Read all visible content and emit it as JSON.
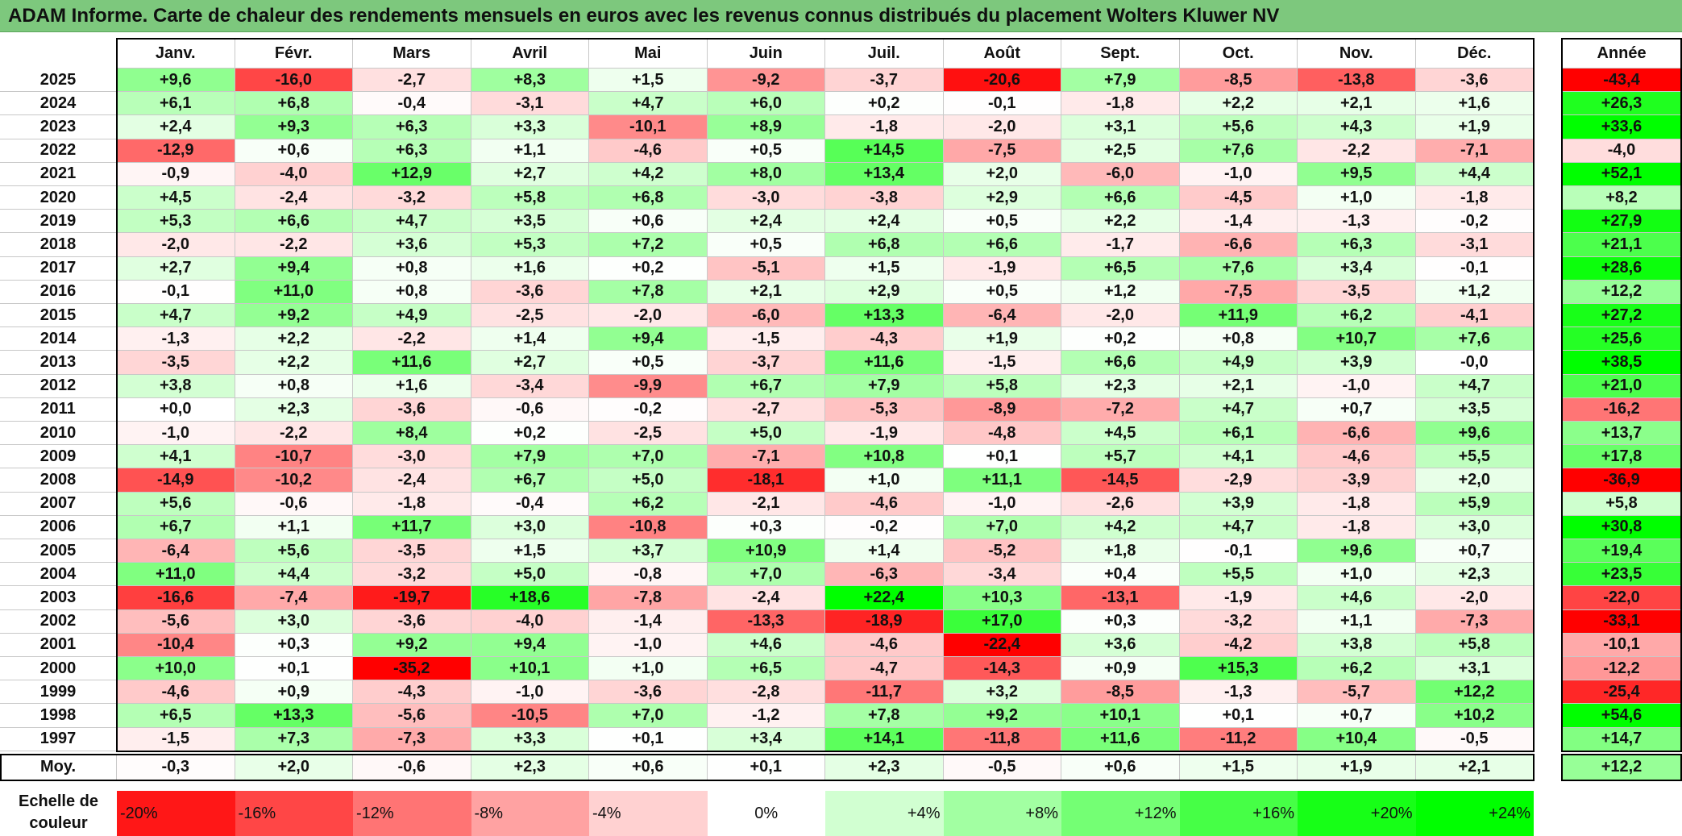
{
  "title": "ADAM Informe. Carte de chaleur des rendements mensuels en euros avec les revenus connus distribués du placement Wolters Kluwer NV",
  "chart_data": {
    "type": "heatmap",
    "title": "ADAM Informe. Carte de chaleur des rendements mensuels en euros avec les revenus connus distribués du placement Wolters Kluwer NV",
    "months": [
      "Janv.",
      "Févr.",
      "Mars",
      "Avril",
      "Mai",
      "Juin",
      "Juil.",
      "Août",
      "Sept.",
      "Oct.",
      "Nov.",
      "Déc."
    ],
    "year_header": "Année",
    "rows": [
      {
        "year": "2025",
        "values": [
          "+9,6",
          "-16,0",
          "-2,7",
          "+8,3",
          "+1,5",
          "-9,2",
          "-3,7",
          "-20,6",
          "+7,9",
          "-8,5",
          "-13,8",
          "-3,6"
        ],
        "total": "-43,4"
      },
      {
        "year": "2024",
        "values": [
          "+6,1",
          "+6,8",
          "-0,4",
          "-3,1",
          "+4,7",
          "+6,0",
          "+0,2",
          "-0,1",
          "-1,8",
          "+2,2",
          "+2,1",
          "+1,6"
        ],
        "total": "+26,3"
      },
      {
        "year": "2023",
        "values": [
          "+2,4",
          "+9,3",
          "+6,3",
          "+3,3",
          "-10,1",
          "+8,9",
          "-1,8",
          "-2,0",
          "+3,1",
          "+5,6",
          "+4,3",
          "+1,9"
        ],
        "total": "+33,6"
      },
      {
        "year": "2022",
        "values": [
          "-12,9",
          "+0,6",
          "+6,3",
          "+1,1",
          "-4,6",
          "+0,5",
          "+14,5",
          "-7,5",
          "+2,5",
          "+7,6",
          "-2,2",
          "-7,1"
        ],
        "total": "-4,0"
      },
      {
        "year": "2021",
        "values": [
          "-0,9",
          "-4,0",
          "+12,9",
          "+2,7",
          "+4,2",
          "+8,0",
          "+13,4",
          "+2,0",
          "-6,0",
          "-1,0",
          "+9,5",
          "+4,4"
        ],
        "total": "+52,1"
      },
      {
        "year": "2020",
        "values": [
          "+4,5",
          "-2,4",
          "-3,2",
          "+5,8",
          "+6,8",
          "-3,0",
          "-3,8",
          "+2,9",
          "+6,6",
          "-4,5",
          "+1,0",
          "-1,8"
        ],
        "total": "+8,2"
      },
      {
        "year": "2019",
        "values": [
          "+5,3",
          "+6,6",
          "+4,7",
          "+3,5",
          "+0,6",
          "+2,4",
          "+2,4",
          "+0,5",
          "+2,2",
          "-1,4",
          "-1,3",
          "-0,2"
        ],
        "total": "+27,9"
      },
      {
        "year": "2018",
        "values": [
          "-2,0",
          "-2,2",
          "+3,6",
          "+5,3",
          "+7,2",
          "+0,5",
          "+6,8",
          "+6,6",
          "-1,7",
          "-6,6",
          "+6,3",
          "-3,1"
        ],
        "total": "+21,1"
      },
      {
        "year": "2017",
        "values": [
          "+2,7",
          "+9,4",
          "+0,8",
          "+1,6",
          "+0,2",
          "-5,1",
          "+1,5",
          "-1,9",
          "+6,5",
          "+7,6",
          "+3,4",
          "-0,1"
        ],
        "total": "+28,6"
      },
      {
        "year": "2016",
        "values": [
          "-0,1",
          "+11,0",
          "+0,8",
          "-3,6",
          "+7,8",
          "+2,1",
          "+2,9",
          "+0,5",
          "+1,2",
          "-7,5",
          "-3,5",
          "+1,2"
        ],
        "total": "+12,2"
      },
      {
        "year": "2015",
        "values": [
          "+4,7",
          "+9,2",
          "+4,9",
          "-2,5",
          "-2,0",
          "-6,0",
          "+13,3",
          "-6,4",
          "-2,0",
          "+11,9",
          "+6,2",
          "-4,1"
        ],
        "total": "+27,2"
      },
      {
        "year": "2014",
        "values": [
          "-1,3",
          "+2,2",
          "-2,2",
          "+1,4",
          "+9,4",
          "-1,5",
          "-4,3",
          "+1,9",
          "+0,2",
          "+0,8",
          "+10,7",
          "+7,6"
        ],
        "total": "+25,6"
      },
      {
        "year": "2013",
        "values": [
          "-3,5",
          "+2,2",
          "+11,6",
          "+2,7",
          "+0,5",
          "-3,7",
          "+11,6",
          "-1,5",
          "+6,6",
          "+4,9",
          "+3,9",
          "-0,0"
        ],
        "total": "+38,5"
      },
      {
        "year": "2012",
        "values": [
          "+3,8",
          "+0,8",
          "+1,6",
          "-3,4",
          "-9,9",
          "+6,7",
          "+7,9",
          "+5,8",
          "+2,3",
          "+2,1",
          "-1,0",
          "+4,7"
        ],
        "total": "+21,0"
      },
      {
        "year": "2011",
        "values": [
          "+0,0",
          "+2,3",
          "-3,6",
          "-0,6",
          "-0,2",
          "-2,7",
          "-5,3",
          "-8,9",
          "-7,2",
          "+4,7",
          "+0,7",
          "+3,5"
        ],
        "total": "-16,2"
      },
      {
        "year": "2010",
        "values": [
          "-1,0",
          "-2,2",
          "+8,4",
          "+0,2",
          "-2,5",
          "+5,0",
          "-1,9",
          "-4,8",
          "+4,5",
          "+6,1",
          "-6,6",
          "+9,6"
        ],
        "total": "+13,7"
      },
      {
        "year": "2009",
        "values": [
          "+4,1",
          "-10,7",
          "-3,0",
          "+7,9",
          "+7,0",
          "-7,1",
          "+10,8",
          "+0,1",
          "+5,7",
          "+4,1",
          "-4,6",
          "+5,5"
        ],
        "total": "+17,8"
      },
      {
        "year": "2008",
        "values": [
          "-14,9",
          "-10,2",
          "-2,4",
          "+6,7",
          "+5,0",
          "-18,1",
          "+1,0",
          "+11,1",
          "-14,5",
          "-2,9",
          "-3,9",
          "+2,0"
        ],
        "total": "-36,9"
      },
      {
        "year": "2007",
        "values": [
          "+5,6",
          "-0,6",
          "-1,8",
          "-0,4",
          "+6,2",
          "-2,1",
          "-4,6",
          "-1,0",
          "-2,6",
          "+3,9",
          "-1,8",
          "+5,9"
        ],
        "total": "+5,8"
      },
      {
        "year": "2006",
        "values": [
          "+6,7",
          "+1,1",
          "+11,7",
          "+3,0",
          "-10,8",
          "+0,3",
          "-0,2",
          "+7,0",
          "+4,2",
          "+4,7",
          "-1,8",
          "+3,0"
        ],
        "total": "+30,8"
      },
      {
        "year": "2005",
        "values": [
          "-6,4",
          "+5,6",
          "-3,5",
          "+1,5",
          "+3,7",
          "+10,9",
          "+1,4",
          "-5,2",
          "+1,8",
          "-0,1",
          "+9,6",
          "+0,7"
        ],
        "total": "+19,4"
      },
      {
        "year": "2004",
        "values": [
          "+11,0",
          "+4,4",
          "-3,2",
          "+5,0",
          "-0,8",
          "+7,0",
          "-6,3",
          "-3,4",
          "+0,4",
          "+5,5",
          "+1,0",
          "+2,3"
        ],
        "total": "+23,5"
      },
      {
        "year": "2003",
        "values": [
          "-16,6",
          "-7,4",
          "-19,7",
          "+18,6",
          "-7,8",
          "-2,4",
          "+22,4",
          "+10,3",
          "-13,1",
          "-1,9",
          "+4,6",
          "-2,0"
        ],
        "total": "-22,0"
      },
      {
        "year": "2002",
        "values": [
          "-5,6",
          "+3,0",
          "-3,6",
          "-4,0",
          "-1,4",
          "-13,3",
          "-18,9",
          "+17,0",
          "+0,3",
          "-3,2",
          "+1,1",
          "-7,3"
        ],
        "total": "-33,1"
      },
      {
        "year": "2001",
        "values": [
          "-10,4",
          "+0,3",
          "+9,2",
          "+9,4",
          "-1,0",
          "+4,6",
          "-4,6",
          "-22,4",
          "+3,6",
          "-4,2",
          "+3,8",
          "+5,8"
        ],
        "total": "-10,1"
      },
      {
        "year": "2000",
        "values": [
          "+10,0",
          "+0,1",
          "-35,2",
          "+10,1",
          "+1,0",
          "+6,5",
          "-4,7",
          "-14,3",
          "+0,9",
          "+15,3",
          "+6,2",
          "+3,1"
        ],
        "total": "-12,2"
      },
      {
        "year": "1999",
        "values": [
          "-4,6",
          "+0,9",
          "-4,3",
          "-1,0",
          "-3,6",
          "-2,8",
          "-11,7",
          "+3,2",
          "-8,5",
          "-1,3",
          "-5,7",
          "+12,2"
        ],
        "total": "-25,4"
      },
      {
        "year": "1998",
        "values": [
          "+6,5",
          "+13,3",
          "-5,6",
          "-10,5",
          "+7,0",
          "-1,2",
          "+7,8",
          "+9,2",
          "+10,1",
          "+0,1",
          "+0,7",
          "+10,2"
        ],
        "total": "+54,6"
      },
      {
        "year": "1997",
        "values": [
          "-1,5",
          "+7,3",
          "-7,3",
          "+3,3",
          "+0,1",
          "+3,4",
          "+14,1",
          "-11,8",
          "+11,6",
          "-11,2",
          "+10,4",
          "-0,5"
        ],
        "total": "+14,7"
      }
    ],
    "average": {
      "label": "Moy.",
      "values": [
        "-0,3",
        "+2,0",
        "-0,6",
        "+2,3",
        "+0,6",
        "+0,1",
        "+2,3",
        "-0,5",
        "+0,6",
        "+1,5",
        "+1,9",
        "+2,1"
      ],
      "total": "+12,2"
    },
    "scale": {
      "label": "Echelle de\ncouleur",
      "stops": [
        {
          "text": "-20%",
          "value": -20,
          "align": "left"
        },
        {
          "text": "-16%",
          "value": -16,
          "align": "left"
        },
        {
          "text": "-12%",
          "value": -12,
          "align": "left"
        },
        {
          "text": "-8%",
          "value": -8,
          "align": "left"
        },
        {
          "text": "-4%",
          "value": -4,
          "align": "left"
        },
        {
          "text": "0%",
          "value": 0,
          "align": "center"
        },
        {
          "text": "+4%",
          "value": 4,
          "align": "right"
        },
        {
          "text": "+8%",
          "value": 8,
          "align": "right"
        },
        {
          "text": "+12%",
          "value": 12,
          "align": "right"
        },
        {
          "text": "+16%",
          "value": 16,
          "align": "right"
        },
        {
          "text": "+20%",
          "value": 20,
          "align": "right"
        },
        {
          "text": "+24%",
          "value": 24,
          "align": "right"
        }
      ]
    },
    "colors": {
      "negative_max": "#ff0000",
      "neutral": "#ffffff",
      "positive_max": "#00ff00",
      "title_bar": "#7dc87d"
    }
  }
}
